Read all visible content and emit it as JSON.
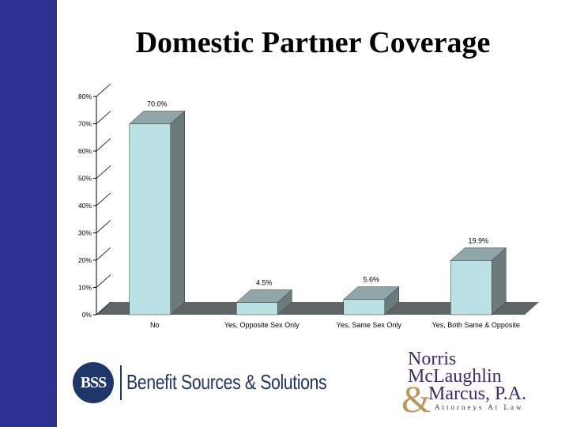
{
  "slide": {
    "title": "Domestic Partner Coverage"
  },
  "chart_data": {
    "type": "bar",
    "categories": [
      "No",
      "Yes, Opposite Sex Only",
      "Yes, Same Sex Only",
      "Yes, Both Same & Opposite"
    ],
    "values": [
      70.0,
      4.5,
      5.6,
      19.9
    ],
    "value_labels": [
      "70.0%",
      "4.5%",
      "5.6%",
      "19.9%"
    ],
    "ylim": [
      0,
      80
    ],
    "yticks": [
      "0%",
      "10%",
      "20%",
      "30%",
      "40%",
      "50%",
      "60%",
      "70%",
      "80%"
    ],
    "grid": false,
    "three_d": true,
    "colors": {
      "bar_front": "#b9e0e3",
      "bar_side": "#6d7a7a",
      "bar_top": "#8fa6a8",
      "floor": "#5d6565"
    }
  },
  "logos": {
    "left": {
      "emblem": "BSS",
      "name": "Benefit Sources & Solutions"
    },
    "right": {
      "line1": "Norris",
      "line2": "McLaughlin",
      "amp": "&",
      "line3": "Marcus, P.A.",
      "tagline": "Attorneys At Law"
    }
  }
}
